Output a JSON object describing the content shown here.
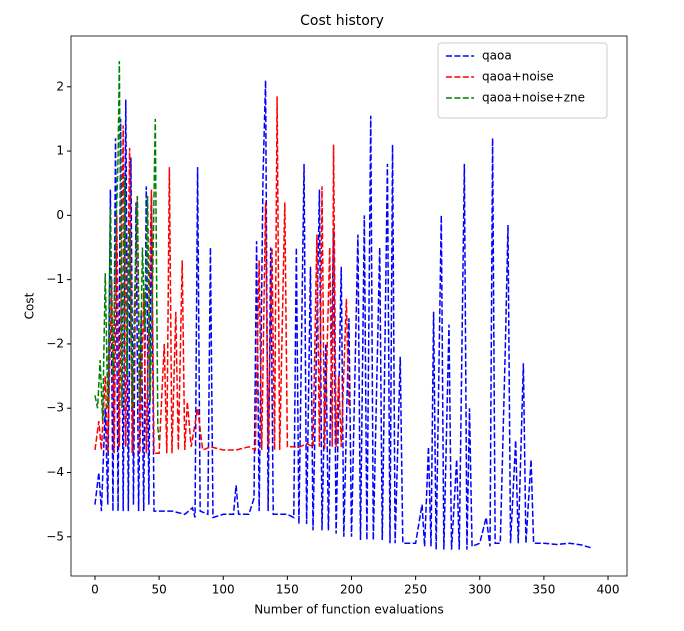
{
  "chart_data": {
    "type": "line",
    "title": "Cost history",
    "xlabel": "Number of function evaluations",
    "ylabel": "Cost",
    "xlim": [
      -18.7,
      414.8
    ],
    "ylim": [
      -5.61,
      2.79
    ],
    "xticks": [
      0,
      50,
      100,
      150,
      200,
      250,
      300,
      350,
      400
    ],
    "yticks": [
      {
        "value": -5,
        "label": "−5"
      },
      {
        "value": -4,
        "label": "−4"
      },
      {
        "value": -3,
        "label": "−3"
      },
      {
        "value": -2,
        "label": "−2"
      },
      {
        "value": -1,
        "label": "−1"
      },
      0,
      1,
      2
    ],
    "legend": "upper right",
    "linestyle": "dashed",
    "series": [
      {
        "name": "qaoa",
        "color": "#0000ff",
        "x": [
          0,
          3,
          5,
          8,
          10,
          12,
          14,
          16,
          18,
          20,
          22,
          24,
          26,
          28,
          30,
          32,
          34,
          36,
          38,
          40,
          42,
          44,
          46,
          50,
          60,
          70,
          76,
          78,
          80,
          82,
          88,
          90,
          92,
          100,
          108,
          110,
          112,
          120,
          124,
          126,
          128,
          131,
          133,
          135,
          137,
          139,
          150,
          155,
          157,
          159,
          163,
          165,
          168,
          170,
          175,
          177,
          180,
          182,
          186,
          188,
          192,
          194,
          198,
          200,
          205,
          207,
          210,
          212,
          215,
          217,
          222,
          224,
          228,
          230,
          232,
          234,
          238,
          240,
          245,
          250,
          255,
          257,
          260,
          262,
          264,
          266,
          270,
          272,
          276,
          278,
          282,
          284,
          288,
          290,
          292,
          294,
          300,
          305,
          308,
          310,
          312,
          316,
          320,
          322,
          324,
          328,
          330,
          334,
          336,
          340,
          342,
          350,
          360,
          370,
          380,
          388
        ],
        "values": [
          -4.5,
          -4.0,
          -4.6,
          -3.0,
          -4.5,
          0.4,
          -4.6,
          1.2,
          -4.6,
          1.5,
          -4.6,
          1.8,
          -4.6,
          0.9,
          -4.5,
          0.2,
          -4.6,
          -1.5,
          -4.6,
          0.45,
          -4.5,
          0.3,
          -4.6,
          -4.6,
          -4.6,
          -4.65,
          -4.55,
          -4.7,
          0.75,
          -4.6,
          -4.65,
          -0.5,
          -4.7,
          -4.65,
          -4.65,
          -4.2,
          -4.65,
          -4.65,
          -4.4,
          -0.4,
          -4.6,
          0.6,
          2.1,
          -4.6,
          -0.5,
          -4.65,
          -4.65,
          -4.7,
          -0.5,
          -4.8,
          0.8,
          -4.8,
          -0.8,
          -4.9,
          0.4,
          -4.9,
          -2.0,
          -4.9,
          -0.2,
          -4.95,
          -0.8,
          -5.0,
          -1.6,
          -5.0,
          -0.3,
          -5.05,
          0.0,
          -5.05,
          1.55,
          -5.05,
          -0.5,
          -5.05,
          0.8,
          -5.1,
          1.1,
          -5.1,
          -2.2,
          -5.1,
          -5.1,
          -5.1,
          -4.5,
          -5.15,
          -3.6,
          -5.15,
          -1.5,
          -5.2,
          0.0,
          -5.2,
          -1.7,
          -5.2,
          -3.8,
          -5.2,
          0.8,
          -5.2,
          -3.0,
          -5.15,
          -5.1,
          -4.7,
          -5.15,
          1.2,
          -5.1,
          -5.1,
          -2.0,
          -0.15,
          -5.1,
          -3.5,
          -5.1,
          -2.3,
          -5.1,
          -3.8,
          -5.1,
          -5.1,
          -5.12,
          -5.1,
          -5.13,
          -5.18
        ]
      },
      {
        "name": "qaoa+noise",
        "color": "#ff0000",
        "x": [
          0,
          3,
          5,
          8,
          10,
          13,
          15,
          17,
          19,
          22,
          24,
          27,
          29,
          33,
          35,
          38,
          40,
          44,
          46,
          50,
          54,
          56,
          58,
          60,
          63,
          65,
          68,
          70,
          72,
          75,
          80,
          84,
          90,
          100,
          110,
          120,
          125,
          128,
          130,
          133,
          135,
          138,
          140,
          142,
          144,
          148,
          150,
          155,
          160,
          165,
          170,
          173,
          175,
          177,
          179,
          183,
          185,
          186,
          188,
          190,
          192,
          196,
          198
        ],
        "values": [
          -3.65,
          -3.2,
          -3.65,
          -2.5,
          -3.7,
          -1.0,
          -3.7,
          0.0,
          -3.6,
          1.4,
          -3.6,
          1.05,
          -3.7,
          0.3,
          -3.7,
          -1.2,
          -3.7,
          0.4,
          -3.7,
          -3.7,
          -2.0,
          -3.7,
          0.75,
          -3.7,
          -1.5,
          -3.65,
          -0.7,
          -3.65,
          -2.9,
          -3.6,
          -3.0,
          -3.65,
          -3.6,
          -3.65,
          -3.65,
          -3.6,
          -3.65,
          -0.7,
          -3.65,
          0.2,
          -3.6,
          -0.5,
          -3.65,
          1.85,
          -3.65,
          0.2,
          -3.6,
          -3.6,
          -3.6,
          -3.55,
          -3.6,
          -0.3,
          -3.6,
          0.45,
          -3.65,
          -0.5,
          -3.6,
          1.1,
          -3.6,
          -2.5,
          -3.6,
          -1.3,
          -3.0
        ]
      },
      {
        "name": "qaoa+noise+zne",
        "color": "#008000",
        "x": [
          0,
          2,
          4,
          6,
          8,
          10,
          12,
          14,
          16,
          18,
          19,
          21,
          23,
          25,
          27,
          29,
          31,
          33,
          35,
          37,
          39,
          41,
          43,
          45,
          47,
          49,
          50
        ],
        "values": [
          -2.8,
          -3.0,
          -2.25,
          -3.2,
          -0.9,
          -3.0,
          0.1,
          -2.5,
          -0.5,
          0.9,
          2.4,
          -3.0,
          0.6,
          -2.5,
          -0.2,
          -3.0,
          -1.2,
          0.3,
          -2.9,
          -0.5,
          -1.8,
          0.3,
          -2.9,
          -1.0,
          1.5,
          -3.3,
          -3.5
        ]
      }
    ]
  }
}
